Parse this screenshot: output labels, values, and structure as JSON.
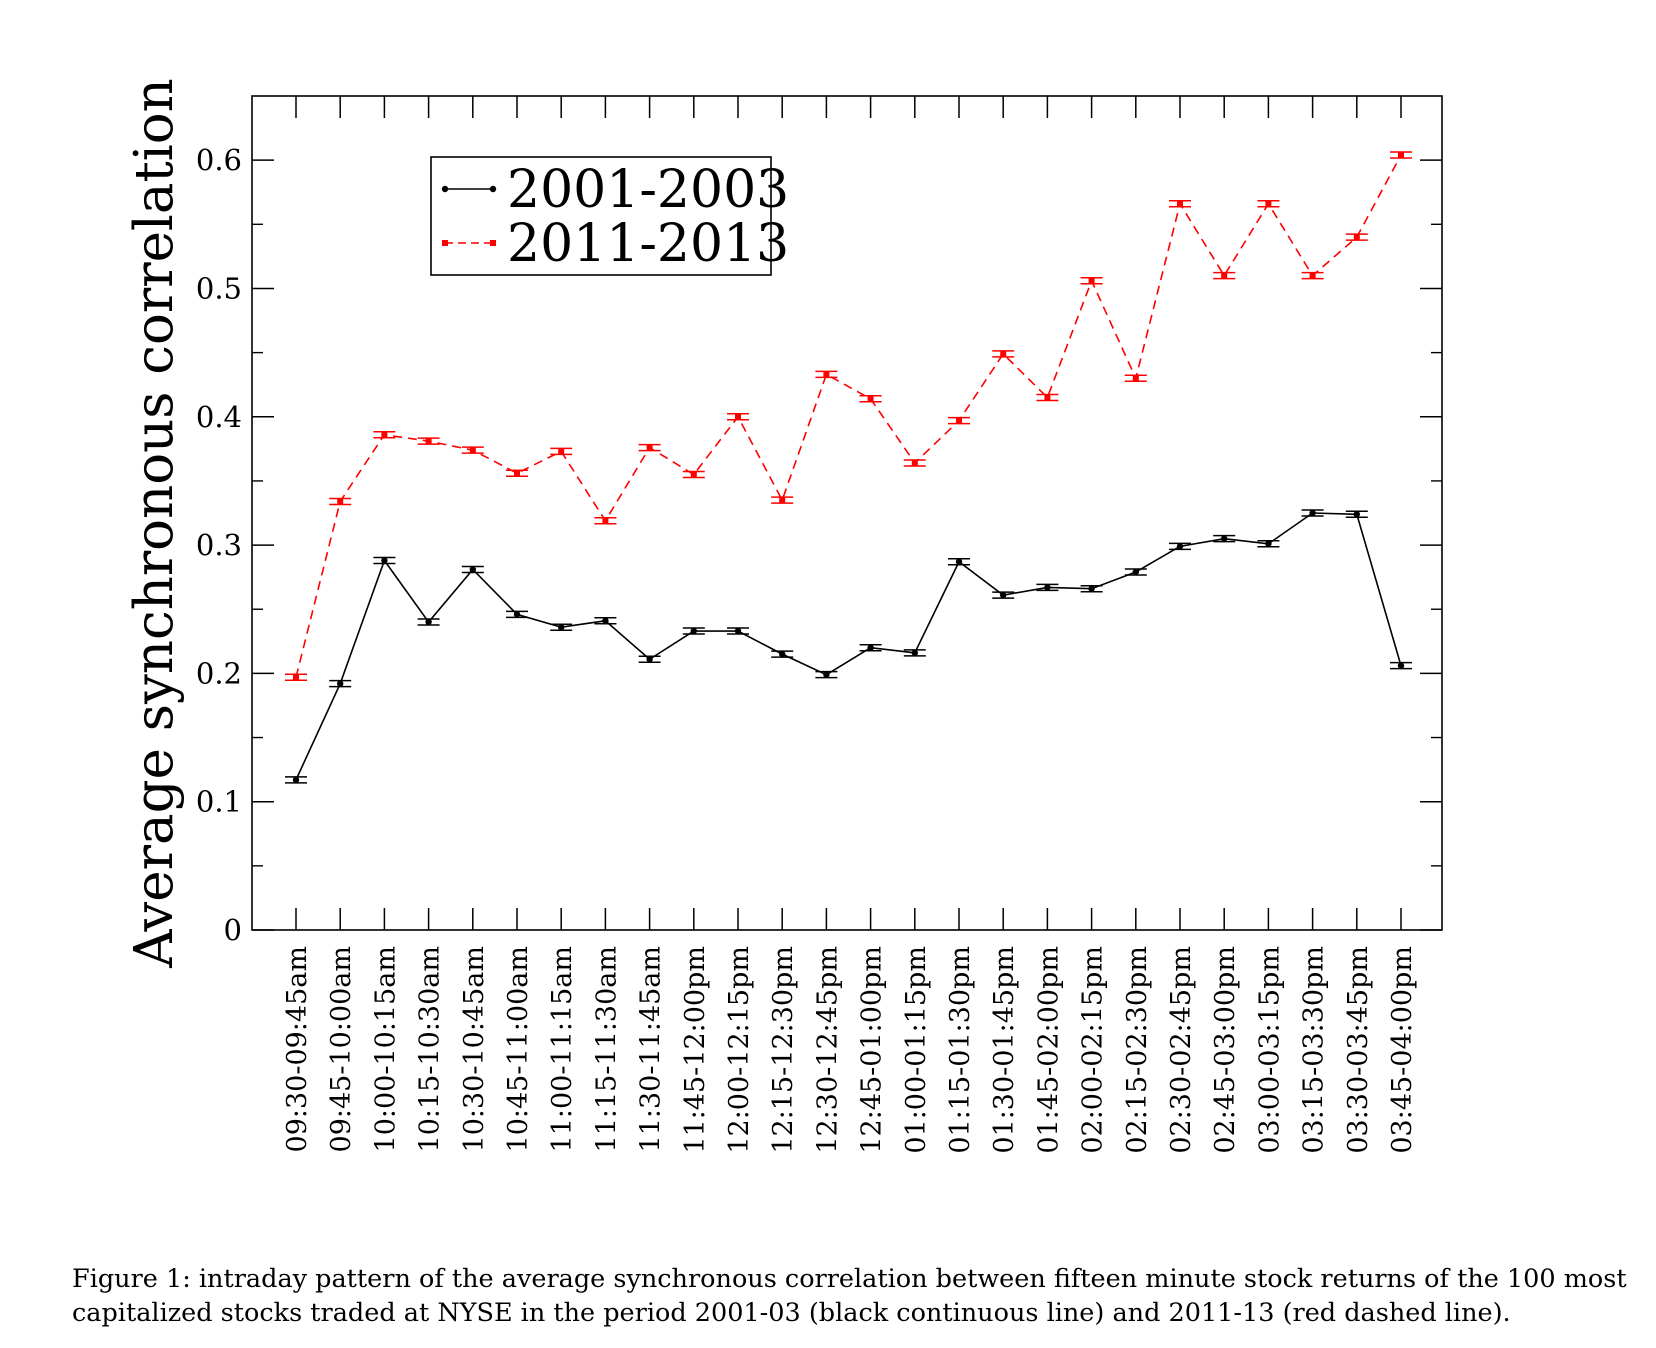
{
  "chart_data": {
    "type": "line",
    "ylabel": "Average synchronous correlation",
    "xlabel": "",
    "ylim": [
      0,
      0.65
    ],
    "yticks": [
      "0",
      "0.1",
      "0.2",
      "0.3",
      "0.4",
      "0.5",
      "0.6"
    ],
    "categories": [
      "09:30-09:45am",
      "09:45-10:00am",
      "10:00-10:15am",
      "10:15-10:30am",
      "10:30-10:45am",
      "10:45-11:00am",
      "11:00-11:15am",
      "11:15-11:30am",
      "11:30-11:45am",
      "11:45-12:00pm",
      "12:00-12:15pm",
      "12:15-12:30pm",
      "12:30-12:45pm",
      "12:45-01:00pm",
      "01:00-01:15pm",
      "01:15-01:30pm",
      "01:30-01:45pm",
      "01:45-02:00pm",
      "02:00-02:15pm",
      "02:15-02:30pm",
      "02:30-02:45pm",
      "02:45-03:00pm",
      "03:00-03:15pm",
      "03:15-03:30pm",
      "03:30-03:45pm",
      "03:45-04:00pm"
    ],
    "series": [
      {
        "name": "2001-2003",
        "color": "#000000",
        "style": "solid",
        "values": [
          0.117,
          0.192,
          0.288,
          0.24,
          0.281,
          0.246,
          0.236,
          0.241,
          0.211,
          0.233,
          0.233,
          0.215,
          0.199,
          0.22,
          0.216,
          0.287,
          0.261,
          0.267,
          0.266,
          0.279,
          0.299,
          0.305,
          0.301,
          0.325,
          0.324,
          0.206
        ]
      },
      {
        "name": "2011-2013",
        "color": "#ff0000",
        "style": "dashed",
        "values": [
          0.197,
          0.334,
          0.386,
          0.381,
          0.374,
          0.356,
          0.373,
          0.319,
          0.376,
          0.355,
          0.4,
          0.335,
          0.433,
          0.414,
          0.364,
          0.397,
          0.449,
          0.415,
          0.506,
          0.43,
          0.566,
          0.51,
          0.566,
          0.51,
          0.54,
          0.604
        ]
      }
    ],
    "legend": "top-left",
    "grid": false
  },
  "caption": {
    "line1": "Figure 1: intraday pattern of the average synchronous correlation between fifteen minute stock returns of the 100 most",
    "line2": "capitalized stocks traded at NYSE in the period 2001-03 (black continuous line) and 2011-13 (red dashed line)."
  }
}
